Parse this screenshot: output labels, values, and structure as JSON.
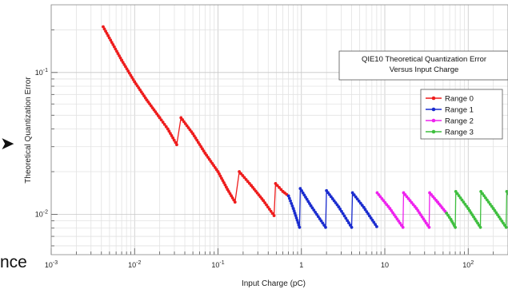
{
  "overlay": {
    "left_text": "nce",
    "arrow_glyph": "➤"
  },
  "chart_data": {
    "type": "line",
    "title_lines": [
      "QIE10 Theoretical Quantization Error",
      "Versus Input Charge"
    ],
    "xlabel": "Input Charge (pC)",
    "ylabel": "Theoretical Quantization Error",
    "x_scale": "log",
    "y_scale": "log",
    "xlim": [
      0.001,
      300
    ],
    "ylim": [
      0.0052,
      0.3
    ],
    "grid": true,
    "legend_position": "right",
    "x_ticks": [
      {
        "value": 0.001,
        "label": "10",
        "exp": "-3"
      },
      {
        "value": 0.01,
        "label": "10",
        "exp": "-2"
      },
      {
        "value": 0.1,
        "label": "10",
        "exp": "-1"
      },
      {
        "value": 1,
        "label": "1",
        "exp": ""
      },
      {
        "value": 10,
        "label": "10",
        "exp": ""
      },
      {
        "value": 100,
        "label": "10",
        "exp": "2"
      }
    ],
    "y_ticks": [
      {
        "value": 0.1,
        "label": "10",
        "exp": "-1"
      },
      {
        "value": 0.01,
        "label": "10",
        "exp": "-2"
      }
    ],
    "series": [
      {
        "name": "Range 0",
        "color": "#ee1c1c",
        "segments": [
          [
            [
              0.0042,
              0.21
            ],
            [
              0.007,
              0.122
            ],
            [
              0.01,
              0.086
            ],
            [
              0.014,
              0.064
            ],
            [
              0.02,
              0.048
            ],
            [
              0.025,
              0.04
            ],
            [
              0.032,
              0.031
            ]
          ],
          [
            [
              0.036,
              0.048
            ],
            [
              0.05,
              0.037
            ],
            [
              0.07,
              0.027
            ],
            [
              0.1,
              0.02
            ],
            [
              0.13,
              0.015
            ],
            [
              0.16,
              0.0122
            ]
          ],
          [
            [
              0.18,
              0.02
            ],
            [
              0.25,
              0.016
            ],
            [
              0.35,
              0.0125
            ],
            [
              0.47,
              0.0098
            ]
          ],
          [
            [
              0.49,
              0.0165
            ],
            [
              0.6,
              0.0145
            ],
            [
              0.7,
              0.0135
            ]
          ]
        ]
      },
      {
        "name": "Range 1",
        "color": "#1a2ccf",
        "segments": [
          [
            [
              0.7,
              0.0135
            ],
            [
              0.8,
              0.011
            ],
            [
              0.95,
              0.0081
            ]
          ],
          [
            [
              0.97,
              0.0152
            ],
            [
              1.3,
              0.0115
            ],
            [
              1.95,
              0.0081
            ]
          ],
          [
            [
              2.0,
              0.0147
            ],
            [
              2.8,
              0.0113
            ],
            [
              4.0,
              0.0081
            ]
          ],
          [
            [
              4.1,
              0.0142
            ],
            [
              5.6,
              0.0112
            ],
            [
              8.0,
              0.0082
            ]
          ]
        ]
      },
      {
        "name": "Range 2",
        "color": "#ee22ee",
        "segments": [
          [
            [
              8.1,
              0.0142
            ],
            [
              11.5,
              0.011
            ],
            [
              16.5,
              0.0081
            ]
          ],
          [
            [
              16.8,
              0.0142
            ],
            [
              24,
              0.011
            ],
            [
              34,
              0.0081
            ]
          ],
          [
            [
              34.5,
              0.0142
            ],
            [
              43,
              0.0122
            ],
            [
              55,
              0.0102
            ]
          ]
        ]
      },
      {
        "name": "Range 3",
        "color": "#3fbf3f",
        "segments": [
          [
            [
              55,
              0.0102
            ],
            [
              62,
              0.0092
            ],
            [
              70,
              0.0081
            ]
          ],
          [
            [
              71,
              0.0145
            ],
            [
              100,
              0.011
            ],
            [
              140,
              0.0081
            ]
          ],
          [
            [
              142,
              0.0145
            ],
            [
              200,
              0.011
            ],
            [
              285,
              0.0081
            ]
          ],
          [
            [
              290,
              0.0145
            ],
            [
              300,
              0.014
            ]
          ]
        ]
      }
    ]
  }
}
